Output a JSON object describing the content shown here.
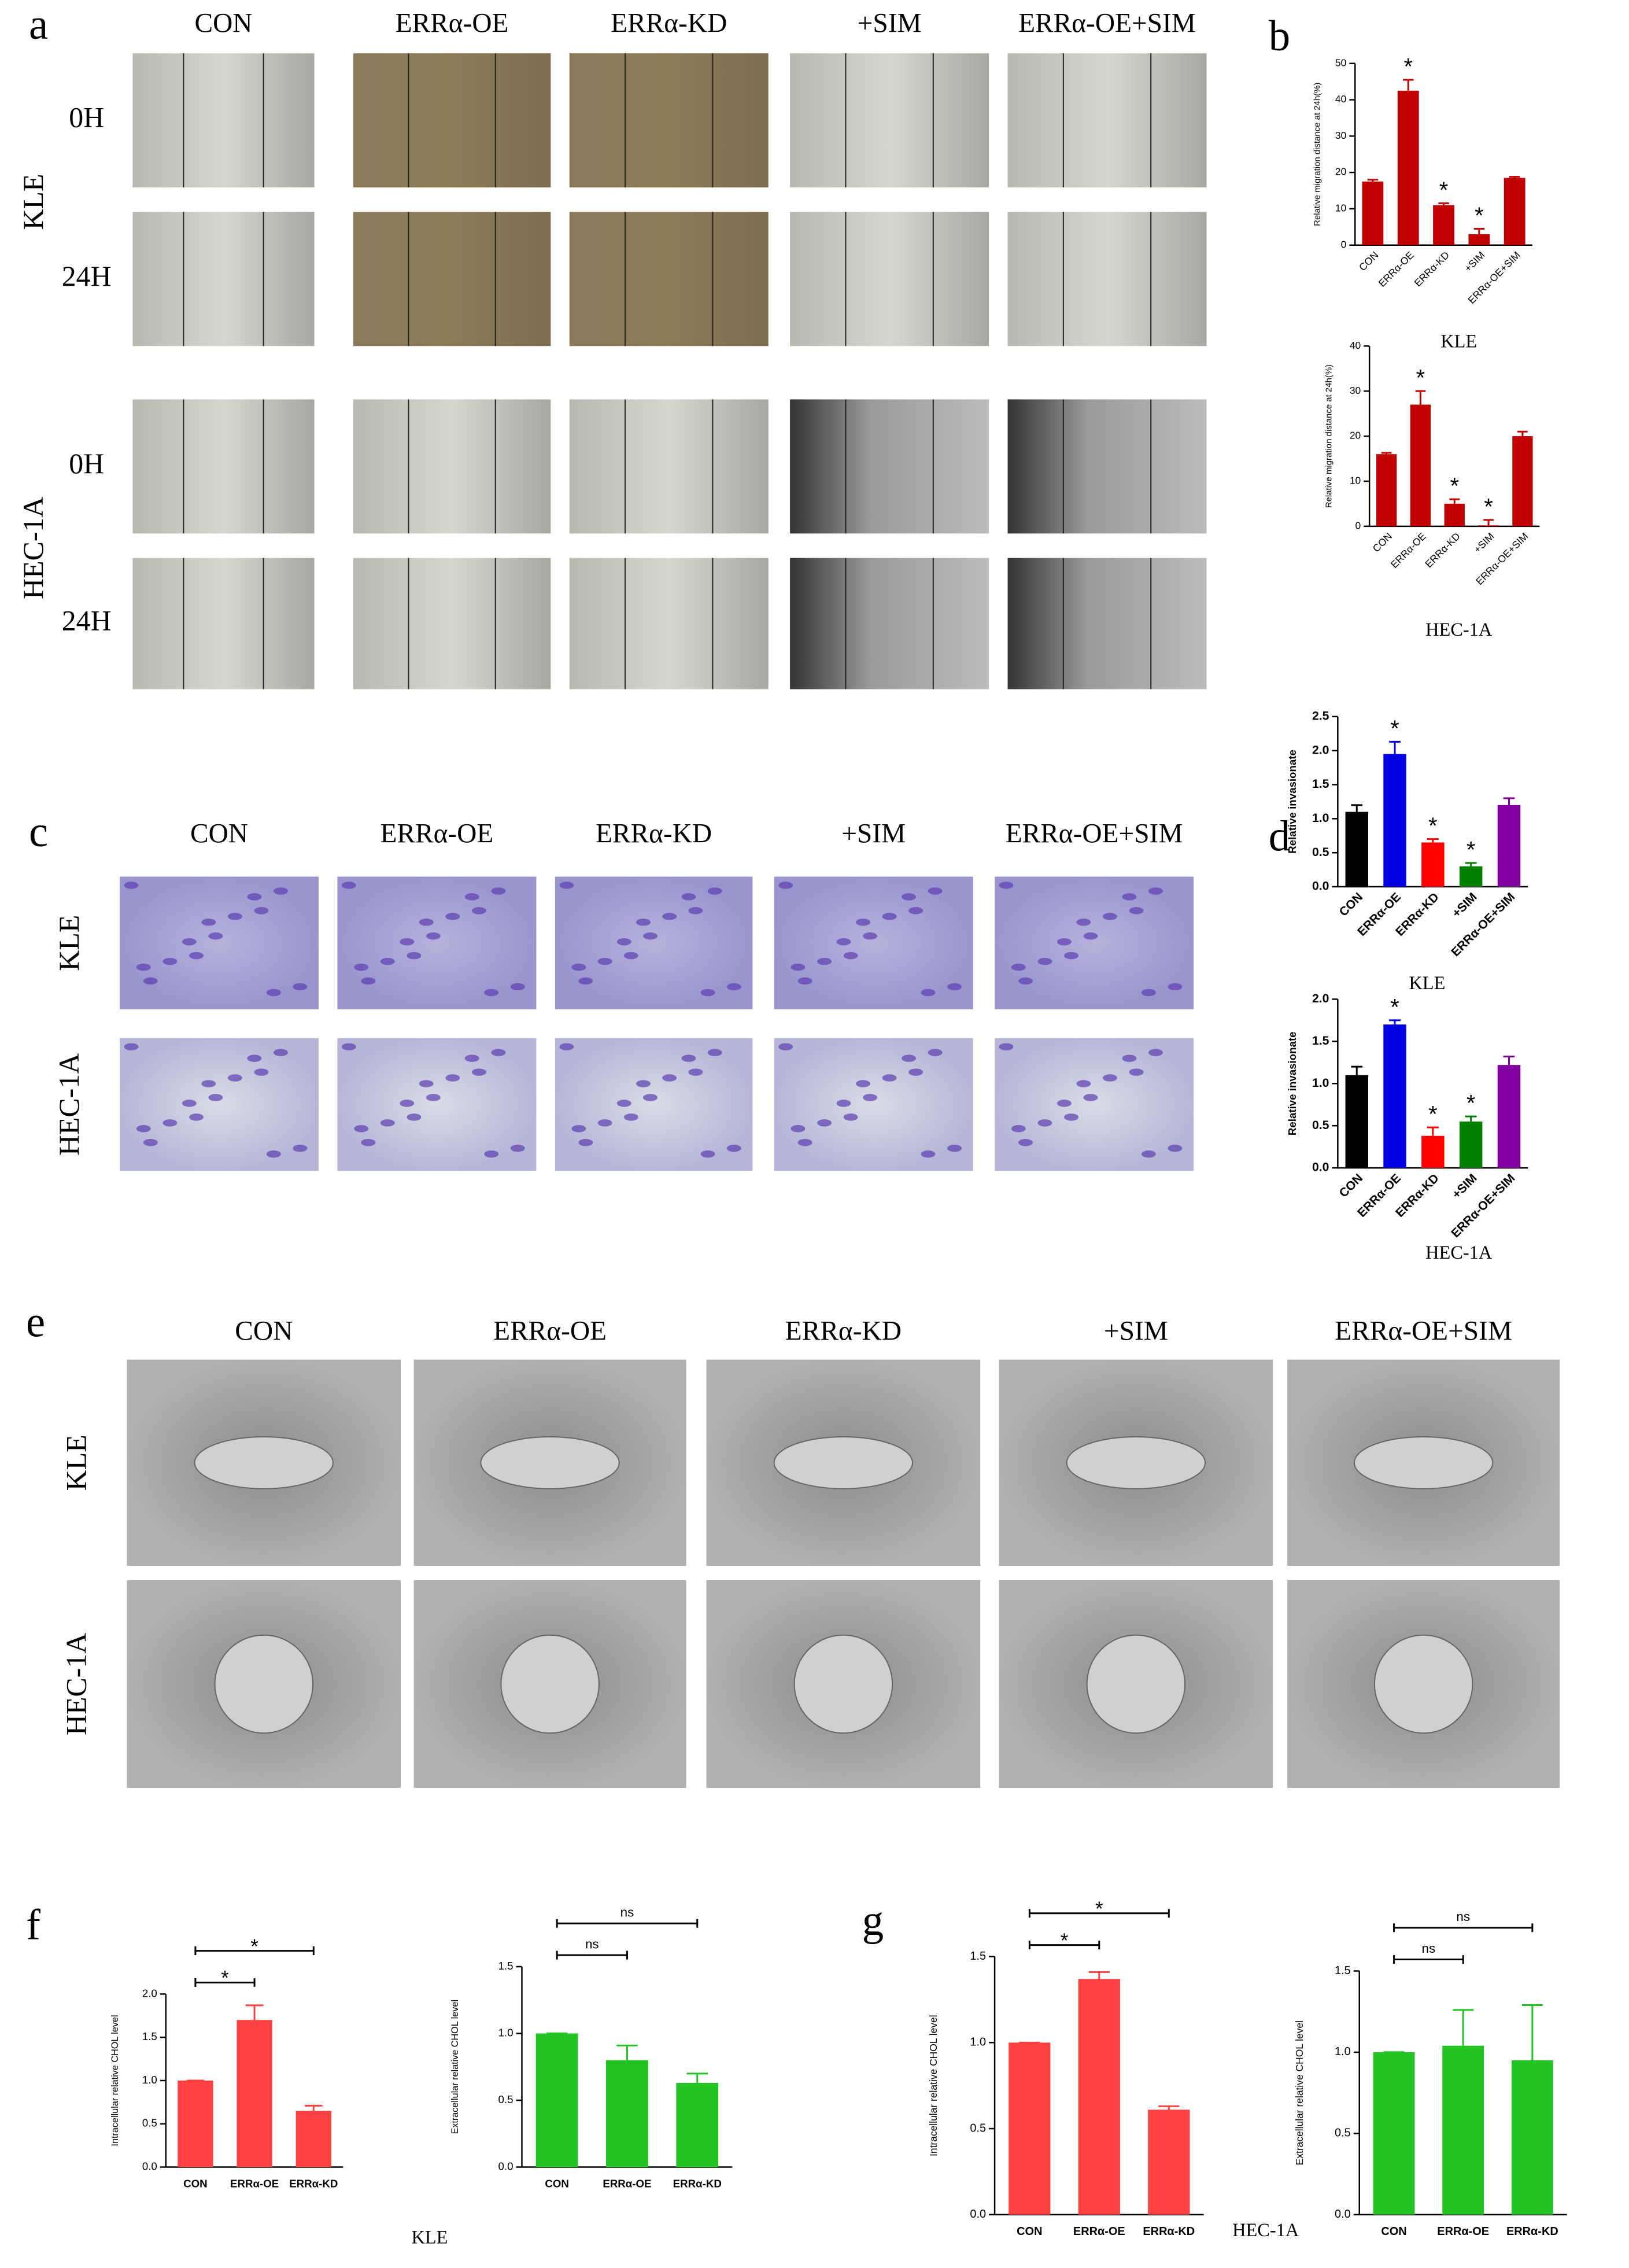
{
  "panels": {
    "a": {
      "letter": "a",
      "columns": [
        "CON",
        "ERRα-OE",
        "ERRα-KD",
        "+SIM",
        "ERRα-OE+SIM"
      ],
      "groups": [
        {
          "name": "KLE",
          "rows": [
            "0H",
            "24H"
          ]
        },
        {
          "name": "HEC-1A",
          "rows": [
            "0H",
            "24H"
          ]
        }
      ]
    },
    "c": {
      "letter": "c",
      "columns": [
        "CON",
        "ERRα-OE",
        "ERRα-KD",
        "+SIM",
        "ERRα-OE+SIM"
      ],
      "rows": [
        "KLE",
        "HEC-1A"
      ]
    },
    "e": {
      "letter": "e",
      "columns": [
        "CON",
        "ERRα-OE",
        "ERRα-KD",
        "+SIM",
        "ERRα-OE+SIM"
      ],
      "rows": [
        "KLE",
        "HEC-1A"
      ]
    }
  },
  "letters": {
    "b": "b",
    "d": "d",
    "f": "f",
    "g": "g"
  },
  "figure_captions": {
    "f": "KLE",
    "g": "HEC-1A"
  },
  "chart_data": [
    {
      "type": "bar",
      "y_label": "Relative migration distance  at 24h(%)",
      "caption": "KLE",
      "categories": [
        "CON",
        "ERRα-OE",
        "ERRα-KD",
        "+SIM",
        "ERRα-OE+SIM"
      ],
      "values": [
        17.5,
        42.5,
        11,
        3,
        18.5
      ],
      "errors": [
        0.5,
        3,
        0.5,
        1.5,
        0.3
      ],
      "annotations": [
        null,
        "*",
        "*",
        "*",
        null
      ],
      "color": "#c00000",
      "ylim": [
        0,
        50
      ],
      "yticks": [
        0,
        10,
        20,
        30,
        40,
        50
      ]
    },
    {
      "type": "bar",
      "y_label": "Relative migration distance  at 24h(%)",
      "caption": "HEC-1A",
      "categories": [
        "CON",
        "ERRα-OE",
        "ERRα-KD",
        "+SIM",
        "ERRα-OE+SIM"
      ],
      "values": [
        16,
        27,
        5,
        0.2,
        20
      ],
      "errors": [
        0.3,
        3,
        1,
        1.2,
        1
      ],
      "annotations": [
        null,
        "*",
        "*",
        "*",
        null
      ],
      "color": "#c00000",
      "ylim": [
        0,
        40
      ],
      "yticks": [
        0,
        10,
        20,
        30,
        40
      ]
    },
    {
      "type": "bar",
      "y_label": "Relative invasionate",
      "caption": "KLE",
      "categories": [
        "CON",
        "ERRα-OE",
        "ERRα-KD",
        "+SIM",
        "ERRα-OE+SIM"
      ],
      "values": [
        1.1,
        1.95,
        0.65,
        0.3,
        1.2
      ],
      "errors": [
        0.1,
        0.18,
        0.05,
        0.05,
        0.1
      ],
      "annotations": [
        null,
        "*",
        "*",
        "*",
        null
      ],
      "colors": [
        "#000000",
        "#0000e0",
        "#ff0000",
        "#008000",
        "#8000a0"
      ],
      "ylim": [
        0,
        2.5
      ],
      "yticks": [
        {
          "value": 0,
          "label": "0.0"
        },
        0.5,
        {
          "value": 1,
          "label": "1.0"
        },
        1.5,
        {
          "value": 2,
          "label": "2.0"
        },
        2.5
      ]
    },
    {
      "type": "bar",
      "y_label": "Relative invasionate",
      "caption": "HEC-1A",
      "categories": [
        "CON",
        "ERRα-OE",
        "ERRα-KD",
        "+SIM",
        "ERRα-OE+SIM"
      ],
      "values": [
        1.1,
        1.7,
        0.38,
        0.55,
        1.22
      ],
      "errors": [
        0.1,
        0.05,
        0.1,
        0.06,
        0.1
      ],
      "annotations": [
        null,
        "*",
        "*",
        "*",
        null
      ],
      "colors": [
        "#000000",
        "#0000e0",
        "#ff0000",
        "#008000",
        "#8000a0"
      ],
      "ylim": [
        0,
        2
      ],
      "yticks": [
        {
          "value": 0,
          "label": "0.0"
        },
        0.5,
        {
          "value": 1,
          "label": "1.0"
        },
        1.5,
        {
          "value": 2,
          "label": "2.0"
        }
      ]
    },
    {
      "type": "bar",
      "y_label": "Intracellular relative CHOL level",
      "categories": [
        "CON",
        "ERRα-OE",
        "ERRα-KD"
      ],
      "values": [
        1,
        1.7,
        0.65
      ],
      "errors": [
        0,
        0.17,
        0.06
      ],
      "comparisons": [
        {
          "from": 0,
          "to": 1,
          "label": "*"
        },
        {
          "from": 0,
          "to": 2,
          "label": "*"
        }
      ],
      "color": "#ff4040",
      "ylim": [
        0,
        2
      ],
      "yticks": [
        {
          "value": 0,
          "label": "0.0"
        },
        0.5,
        {
          "value": 1,
          "label": "1.0"
        },
        1.5,
        {
          "value": 2,
          "label": "2.0"
        }
      ]
    },
    {
      "type": "bar",
      "y_label": "Extracellular relative CHOL level",
      "categories": [
        "CON",
        "ERRα-OE",
        "ERRα-KD"
      ],
      "values": [
        1,
        0.8,
        0.63
      ],
      "errors": [
        0,
        0.11,
        0.07
      ],
      "comparisons": [
        {
          "from": 0,
          "to": 1,
          "label": "ns"
        },
        {
          "from": 0,
          "to": 2,
          "label": "ns"
        }
      ],
      "color": "#22c322",
      "ylim": [
        0,
        1.5
      ],
      "yticks": [
        {
          "value": 0,
          "label": "0.0"
        },
        0.5,
        {
          "value": 1,
          "label": "1.0"
        },
        1.5
      ]
    },
    {
      "type": "bar",
      "y_label": "Intracellular relative CHOL level",
      "categories": [
        "CON",
        "ERRα-OE",
        "ERRα-KD"
      ],
      "values": [
        1,
        1.37,
        0.61
      ],
      "errors": [
        0,
        0.04,
        0.02
      ],
      "comparisons": [
        {
          "from": 0,
          "to": 1,
          "label": "*"
        },
        {
          "from": 0,
          "to": 2,
          "label": "*"
        }
      ],
      "color": "#ff4040",
      "ylim": [
        0,
        1.5
      ],
      "yticks": [
        {
          "value": 0,
          "label": "0.0"
        },
        0.5,
        {
          "value": 1,
          "label": "1.0"
        },
        1.5
      ]
    },
    {
      "type": "bar",
      "y_label": "Extracellular relative CHOL level",
      "categories": [
        "CON",
        "ERRα-OE",
        "ERRα-KD"
      ],
      "values": [
        1,
        1.04,
        0.95
      ],
      "errors": [
        0,
        0.22,
        0.34
      ],
      "comparisons": [
        {
          "from": 0,
          "to": 1,
          "label": "ns"
        },
        {
          "from": 0,
          "to": 2,
          "label": "ns"
        }
      ],
      "color": "#22c322",
      "ylim": [
        0,
        1.5
      ],
      "yticks": [
        {
          "value": 0,
          "label": "0.0"
        },
        0.5,
        {
          "value": 1,
          "label": "1.0"
        },
        1.5
      ]
    }
  ]
}
